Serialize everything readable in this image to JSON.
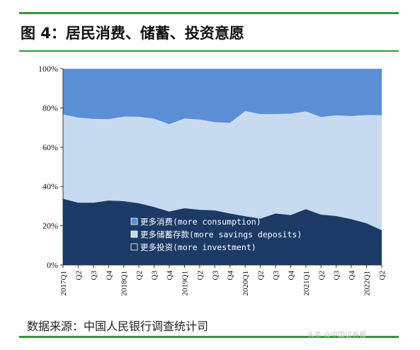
{
  "header": {
    "title": "图 4：居民消费、储蓄、投资意愿"
  },
  "footer": {
    "source": "数据来源：中国人民银行调查统计司",
    "watermark": "头条 @中国证券报"
  },
  "colors": {
    "consumption": "#5b8fd6",
    "savings": "#c8daf0",
    "investment": "#1b3a66",
    "rule": "#2f9a3a"
  },
  "chart_data": {
    "type": "area",
    "stacked": true,
    "categories": [
      "2017Q1",
      "Q2",
      "Q3",
      "Q4",
      "2018Q1",
      "Q2",
      "Q3",
      "Q4",
      "2019Q1",
      "Q2",
      "Q3",
      "Q4",
      "2020Q1",
      "Q2",
      "Q3",
      "Q4",
      "2021Q1",
      "Q2",
      "Q3",
      "Q4",
      "2022Q1",
      "Q2"
    ],
    "y_ticks": [
      "0%",
      "20%",
      "40%",
      "60%",
      "80%",
      "100%"
    ],
    "ylim": [
      0,
      100
    ],
    "grid": false,
    "legend_position": "inside-bottom-center",
    "series": [
      {
        "name": "更多投资(more investment)",
        "key": "investment",
        "values": [
          33.8,
          31.8,
          31.8,
          32.9,
          32.6,
          31.5,
          29.6,
          27.3,
          29.0,
          28.2,
          27.9,
          26.3,
          24.9,
          23.7,
          26.3,
          25.5,
          28.5,
          25.7,
          25.0,
          23.4,
          21.3,
          17.8
        ]
      },
      {
        "name": "更多储蓄存款(more savings deposits)",
        "key": "savings",
        "values": [
          42.9,
          43.3,
          42.6,
          41.4,
          43.0,
          44.0,
          44.9,
          44.4,
          45.6,
          45.9,
          44.9,
          46.1,
          53.5,
          53.2,
          50.6,
          51.6,
          49.7,
          49.7,
          51.2,
          52.4,
          55.1,
          58.5
        ]
      },
      {
        "name": "更多消费(more consumption)",
        "key": "consumption",
        "values": [
          23.3,
          24.9,
          25.6,
          25.7,
          24.4,
          24.5,
          25.5,
          28.3,
          25.4,
          25.9,
          27.2,
          27.6,
          21.6,
          23.1,
          23.1,
          22.9,
          21.8,
          24.6,
          23.8,
          24.2,
          23.6,
          23.7
        ]
      }
    ],
    "legend_order": [
      "consumption",
      "savings",
      "investment"
    ]
  }
}
